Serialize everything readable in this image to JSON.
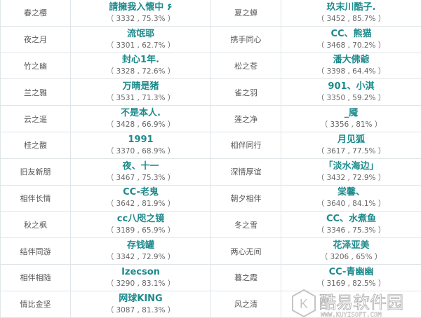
{
  "rows": [
    {
      "left": {
        "label": "春之樱",
        "name": "請擁我入懷中 ۶",
        "stat": "（ 3332 , 75.3% ）"
      },
      "right": {
        "label": "夏之蝉",
        "name": "玖末川酷子.",
        "stat": "（ 3452 , 85.7% ）"
      }
    },
    {
      "left": {
        "label": "夜之月",
        "name": "流氓耶",
        "stat": "（ 3301 , 62.7% ）"
      },
      "right": {
        "label": "携手同心",
        "name": "CC、熊猫",
        "stat": "（ 3468 , 70.2% ）"
      }
    },
    {
      "left": {
        "label": "竹之幽",
        "name": "封心1年.",
        "stat": "（ 3328 , 72.6% ）"
      },
      "right": {
        "label": "松之苍",
        "name": "潘大佛爺",
        "stat": "（ 3398 , 64.4% ）"
      }
    },
    {
      "left": {
        "label": "兰之雅",
        "name": "万晴是猪",
        "stat": "（ 3531 , 71.3% ）"
      },
      "right": {
        "label": "雀之羽",
        "name": "901、小淇",
        "stat": "（ 3350 , 59.2% ）"
      }
    },
    {
      "left": {
        "label": "云之遥",
        "name": "不是本人.",
        "stat": "（ 3428 , 66.9% ）"
      },
      "right": {
        "label": "莲之净",
        "name": "_魇",
        "stat": "（ 3356 , 81% ）"
      }
    },
    {
      "left": {
        "label": "桂之馥",
        "name": "1991",
        "stat": "（ 3370 , 68.9% ）"
      },
      "right": {
        "label": "相伴同行",
        "name": "月见狐",
        "stat": "（ 3617 , 77.5% ）"
      }
    },
    {
      "left": {
        "label": "旧友新朋",
        "name": "夜、十一",
        "stat": "（ 3467 , 75.3% ）"
      },
      "right": {
        "label": "深情厚谊",
        "name": "「淡水海边」",
        "stat": "（ 3432 , 72.9% ）"
      }
    },
    {
      "left": {
        "label": "相伴长情",
        "name": "CC-老鬼",
        "stat": "（ 3642 , 81.9% ）"
      },
      "right": {
        "label": "朝夕相伴",
        "name": "棠馨、",
        "stat": "（ 3640 , 84.1% ）"
      }
    },
    {
      "left": {
        "label": "秋之枫",
        "name": "cc八咫之镜",
        "stat": "（ 3189 , 65.9% ）"
      },
      "right": {
        "label": "冬之雪",
        "name": "CC、水煮鱼",
        "stat": "（ 3346 , 75.3% ）"
      }
    },
    {
      "left": {
        "label": "结伴同游",
        "name": "存钱罐",
        "stat": "（ 3342 , 72.9% ）"
      },
      "right": {
        "label": "两心无间",
        "name": "花泽亚美",
        "stat": "（ 3206 , 65% ）"
      }
    },
    {
      "left": {
        "label": "相伴相随",
        "name": "Izecson",
        "stat": "（ 3290 , 83.1% ）"
      },
      "right": {
        "label": "暮之霞",
        "name": "CC-青幽幽",
        "stat": "（ 3169 , 82.5% ）"
      }
    },
    {
      "left": {
        "label": "情比金坚",
        "name": "网球KING",
        "stat": "（ 3087 , 81.3% ）"
      },
      "right": {
        "label": "风之清",
        "name": "",
        "stat": ""
      }
    }
  ],
  "watermark": {
    "text": "酷易软件园",
    "url_text": "WWW.KUYISOFT.COM"
  },
  "colors": {
    "name": "#1d8a8c",
    "border": "#dfe5e8"
  }
}
